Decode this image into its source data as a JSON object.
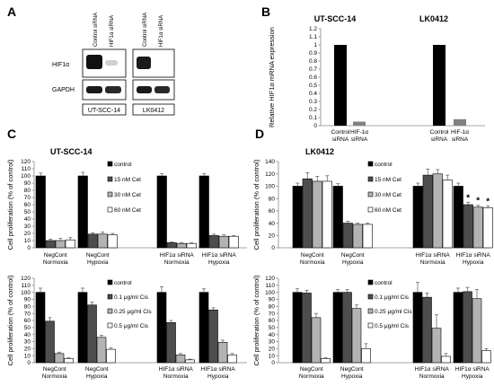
{
  "panel_letters": [
    "A",
    "B",
    "C",
    "D"
  ],
  "blot": {
    "columns": [
      "Control siRNA",
      "HIF1α siRNA",
      "Control siRNA",
      "HIF1α siRNA"
    ],
    "rows": [
      "HIF1α",
      "GAPDH"
    ],
    "cell_lines": [
      "UT-SCC-14",
      "LK0412"
    ]
  },
  "chart_data": [
    {
      "id": "B",
      "type": "bar",
      "ylabel": "Relative HIF1α mRNA expression",
      "ylim": [
        0,
        1.2
      ],
      "yticks": [
        "0",
        "0.1",
        "0.2",
        "0.3",
        "0.4",
        "0.5",
        "0.6",
        "0.7",
        "0.8",
        "0.9",
        "1",
        "1.1",
        "1.2"
      ],
      "group_titles": [
        "UT-SCC-14",
        "LK0412"
      ],
      "categories": [
        "Control siRNA",
        "HIF-1α siRNA",
        "Control siRNA",
        "HIF-1α siRNA"
      ],
      "values": [
        1.0,
        0.05,
        1.0,
        0.08
      ],
      "colors": [
        "#000000",
        "#808080",
        "#000000",
        "#808080"
      ]
    },
    {
      "id": "C-top",
      "type": "bar",
      "title": "UT-SCC-14",
      "ylabel": "Cell proliferation (% of control)",
      "ylim": [
        0,
        120
      ],
      "yticks": [
        "0",
        "10",
        "20",
        "30",
        "40",
        "50",
        "60",
        "70",
        "80",
        "90",
        "100",
        "110",
        "120"
      ],
      "categories": [
        "NegCont Normoxia",
        "NegCont Hypoxia",
        "HIF1α siRNA Normoxia",
        "HIF1α siRNA Hypoxia"
      ],
      "series": [
        {
          "name": "control",
          "values": [
            100,
            100,
            100,
            100
          ],
          "errors": [
            4,
            5,
            3,
            3
          ]
        },
        {
          "name": "15 nM Cet",
          "values": [
            10,
            19,
            7,
            17
          ],
          "errors": [
            2,
            2,
            1,
            2
          ]
        },
        {
          "name": "30 nM Cet",
          "values": [
            10,
            19,
            6,
            16
          ],
          "errors": [
            3,
            3,
            1,
            2
          ]
        },
        {
          "name": "60 nM Cet",
          "values": [
            11,
            18,
            6,
            16
          ],
          "errors": [
            3,
            2,
            1,
            1
          ]
        }
      ],
      "legend_position": "top-left"
    },
    {
      "id": "D-top",
      "type": "bar",
      "title": "LK0412",
      "ylabel": "Cell proliferation (% of control)",
      "ylim": [
        0,
        140
      ],
      "yticks": [
        "0",
        "20",
        "40",
        "60",
        "80",
        "100",
        "120",
        "140"
      ],
      "categories": [
        "NegCont Normoxia",
        "NegCont Hypoxia",
        "HIF1α siRNA Normoxia",
        "HIF1α siRNA Hypoxia"
      ],
      "series": [
        {
          "name": "control",
          "values": [
            100,
            100,
            100,
            100
          ],
          "errors": [
            5,
            4,
            5,
            5
          ]
        },
        {
          "name": "15 nM Cet",
          "values": [
            112,
            40,
            118,
            70
          ],
          "errors": [
            10,
            3,
            10,
            4
          ]
        },
        {
          "name": "30 nM Cet",
          "values": [
            108,
            38,
            120,
            66
          ],
          "errors": [
            8,
            2,
            7,
            3
          ]
        },
        {
          "name": "60 nM Cet",
          "values": [
            108,
            38,
            110,
            65
          ],
          "errors": [
            9,
            2,
            8,
            3
          ]
        }
      ],
      "annotations": [
        {
          "category": 3,
          "series": [
            1,
            2,
            3
          ],
          "text": "*"
        }
      ],
      "legend_position": "top-left"
    },
    {
      "id": "C-bottom",
      "type": "bar",
      "ylabel": "Cell proliferation (% of control)",
      "ylim": [
        0,
        120
      ],
      "yticks": [
        "0",
        "10",
        "20",
        "30",
        "40",
        "50",
        "60",
        "70",
        "80",
        "90",
        "100",
        "110",
        "120"
      ],
      "categories": [
        "NegCont Normoxia",
        "NegCont Hypoxia",
        "HIF1α siRNA Normoxia",
        "HIF1α siRNA Hypoxia"
      ],
      "series": [
        {
          "name": "control",
          "values": [
            100,
            100,
            100,
            100
          ],
          "errors": [
            6,
            6,
            8,
            5
          ]
        },
        {
          "name": "0.1 μg/ml Cis",
          "values": [
            59,
            82,
            57,
            75
          ],
          "errors": [
            5,
            4,
            3,
            3
          ]
        },
        {
          "name": "0.25 μg/ml Cis",
          "values": [
            13,
            36,
            11,
            29
          ],
          "errors": [
            2,
            3,
            2,
            3
          ]
        },
        {
          "name": "0.5 μg/ml Cis",
          "values": [
            6,
            19,
            4,
            11
          ],
          "errors": [
            1,
            2,
            1,
            2
          ]
        }
      ],
      "legend_position": "top-left"
    },
    {
      "id": "D-bottom",
      "type": "bar",
      "ylabel": "Cell proliferation (% of control)",
      "ylim": [
        0,
        120
      ],
      "yticks": [
        "0",
        "10",
        "20",
        "30",
        "40",
        "50",
        "60",
        "70",
        "80",
        "90",
        "100",
        "110",
        "120"
      ],
      "categories": [
        "NegCont Normoxia",
        "NegCont Hypoxia",
        "HIF1α siRNA Normoxia",
        "HIF1α siRNA Hypoxia"
      ],
      "series": [
        {
          "name": "control",
          "values": [
            100,
            100,
            100,
            100
          ],
          "errors": [
            5,
            4,
            14,
            6
          ]
        },
        {
          "name": "0.1 μg/ml Cis",
          "values": [
            99,
            100,
            93,
            101
          ],
          "errors": [
            4,
            4,
            6,
            6
          ]
        },
        {
          "name": "0.25 μg/ml Cis",
          "values": [
            64,
            77,
            49,
            91
          ],
          "errors": [
            6,
            5,
            19,
            13
          ]
        },
        {
          "name": "0.5 μg/ml Cis",
          "values": [
            6,
            20,
            9,
            17
          ],
          "errors": [
            1,
            7,
            4,
            3
          ]
        }
      ],
      "legend_position": "top-left"
    }
  ],
  "colors": {
    "series": [
      "#000000",
      "#4d4d4d",
      "#b3b3b3",
      "#ffffff"
    ],
    "bar_stroke": "#000000",
    "axis": "#888888"
  }
}
